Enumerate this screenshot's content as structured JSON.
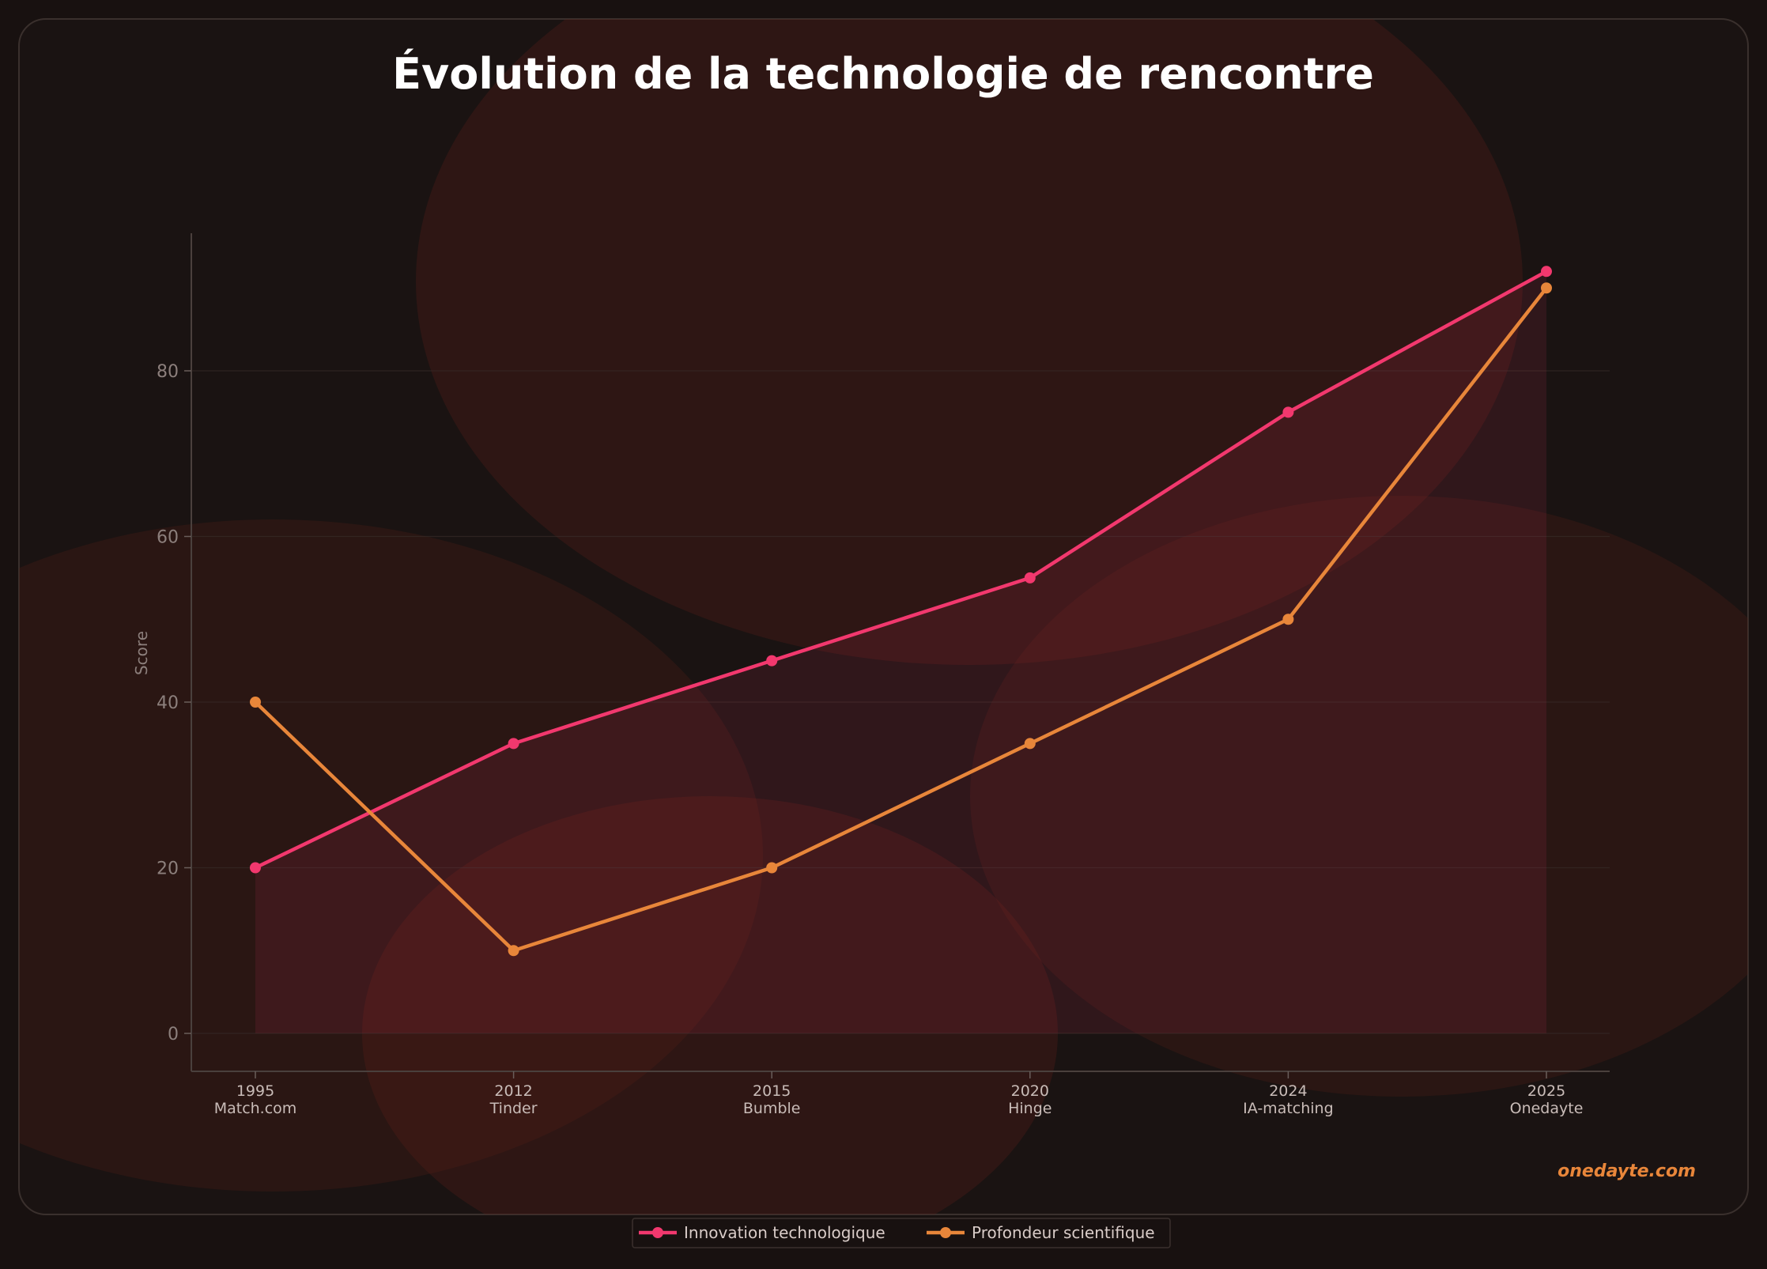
{
  "title": "Évolution de la technologie de rencontre",
  "watermark": "onedayte.com",
  "colors": {
    "background": "#181110",
    "panel": "#1a1312",
    "series1": "#f2386e",
    "series2": "#e8863a",
    "watermark": "#e8863a",
    "axis_text": "#8c7f7c",
    "tick_text": "#c9bcb8",
    "legend_text": "#d9ccc8"
  },
  "chart_data": {
    "type": "line",
    "title": "Évolution de la technologie de rencontre",
    "ylabel": "Score",
    "xlabel": "",
    "ylim": [
      -4.5,
      97
    ],
    "yticks": [
      0,
      20,
      40,
      60,
      80
    ],
    "grid": true,
    "legend_position": "bottom-center",
    "categories": [
      {
        "year": "1995",
        "name": "Match.com"
      },
      {
        "year": "2012",
        "name": "Tinder"
      },
      {
        "year": "2015",
        "name": "Bumble"
      },
      {
        "year": "2020",
        "name": "Hinge"
      },
      {
        "year": "2024",
        "name": "IA-matching"
      },
      {
        "year": "2025",
        "name": "Onedayte"
      }
    ],
    "series": [
      {
        "name": "Innovation technologique",
        "values": [
          20,
          35,
          45,
          55,
          75,
          92
        ],
        "color": "#f2386e",
        "filled": true
      },
      {
        "name": "Profondeur scientifique",
        "values": [
          40,
          10,
          20,
          35,
          50,
          90
        ],
        "color": "#e8863a",
        "filled": false
      }
    ]
  }
}
